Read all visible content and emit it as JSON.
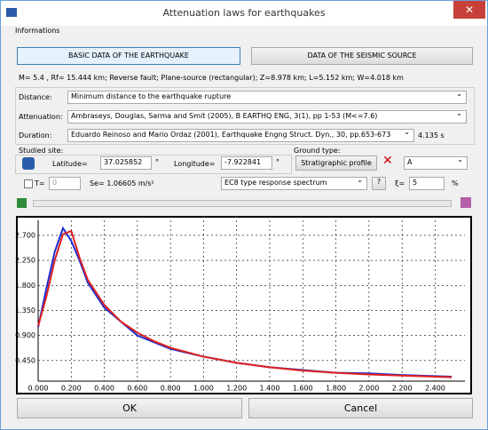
{
  "window": {
    "title": "Attenuation laws for earthquakes",
    "menu": "Informations"
  },
  "tabs": [
    "BASIC DATA OF THE EARTHQUAKE",
    "DATA OF THE SEISMIC SOURCE"
  ],
  "info": "M= 5.4 , Rf= 15.444 km; Reverse fault; Plane-source (rectangular); Z=8.978 km; L=5.152 km; W=4.018 km",
  "fields": [
    {
      "label": "Distance:",
      "value": "Minimum distance to the earthquake rupture"
    },
    {
      "label": "Attenuation:",
      "value": "Ambraseys, Douglas, Sarma and Smit (2005), B EARTHQ ENG, 3(1), pp 1-53 (M<=7.6)"
    },
    {
      "label": "Duration:",
      "value": "Eduardo Reinoso and Mario Ordaz (2001), Earthquake Engng Struct. Dyn., 30, pp.653-673",
      "extra": "4.135 s"
    }
  ],
  "site": {
    "title": "Studied site:",
    "lat_label": "Latitude=",
    "lat": "37.025852",
    "lon_label": "Longitude=",
    "lon": "-7.922841",
    "deg": "°",
    "ground_label": "Ground type:",
    "profile": "Stratigraphic profile",
    "ground": "A"
  },
  "spectrum": {
    "t_label": "T=",
    "t": "0",
    "se": "Se= 1.06605 m/s²",
    "type": "EC8 type response spectrum",
    "help": "?",
    "xi_label": "ξ=",
    "xi": "5",
    "pct": "%"
  },
  "buttons": {
    "ok": "OK",
    "cancel": "Cancel"
  },
  "chart_data": {
    "type": "line",
    "xlim": [
      0,
      2.58
    ],
    "ylim": [
      0.08,
      2.97
    ],
    "grid": true,
    "x": [
      0,
      0.05,
      0.1,
      0.15,
      0.2,
      0.25,
      0.3,
      0.4,
      0.5,
      0.6,
      0.7,
      0.8,
      1.0,
      1.2,
      1.4,
      1.6,
      1.8,
      2.0,
      2.2,
      2.4,
      2.5
    ],
    "series": [
      {
        "color": "#1f2fd0",
        "values": [
          1.05,
          1.75,
          2.4,
          2.83,
          2.6,
          2.25,
          1.85,
          1.4,
          1.15,
          0.9,
          0.78,
          0.66,
          0.52,
          0.41,
          0.33,
          0.28,
          0.23,
          0.22,
          0.19,
          0.17,
          0.16
        ]
      },
      {
        "color": "#e02020",
        "values": [
          1.07,
          1.6,
          2.25,
          2.72,
          2.78,
          2.3,
          1.9,
          1.45,
          1.15,
          0.95,
          0.8,
          0.68,
          0.52,
          0.41,
          0.33,
          0.27,
          0.23,
          0.2,
          0.18,
          0.16,
          0.15
        ]
      }
    ],
    "xticks": [
      {
        "value": 0,
        "label": "0.000"
      },
      {
        "value": 0.2,
        "label": "0.200"
      },
      {
        "value": 0.4,
        "label": "0.400"
      },
      {
        "value": 0.6,
        "label": "0.600"
      },
      {
        "value": 0.8,
        "label": "0.800"
      },
      {
        "value": 1.0,
        "label": "1.000"
      },
      {
        "value": 1.2,
        "label": "1.200"
      },
      {
        "value": 1.4,
        "label": "1.400"
      },
      {
        "value": 1.6,
        "label": "1.600"
      },
      {
        "value": 1.8,
        "label": "1.800"
      },
      {
        "value": 2.0,
        "label": "2.000"
      },
      {
        "value": 2.2,
        "label": "2.200"
      },
      {
        "value": 2.4,
        "label": "2.400"
      }
    ],
    "yticks": [
      {
        "value": 0.45,
        "label": "0.450"
      },
      {
        "value": 0.9,
        "label": "0.900"
      },
      {
        "value": 1.35,
        "label": "1.350"
      },
      {
        "value": 1.8,
        "label": "1.800"
      },
      {
        "value": 2.25,
        "label": "2.250"
      },
      {
        "value": 2.7,
        "label": "2.700"
      }
    ]
  }
}
